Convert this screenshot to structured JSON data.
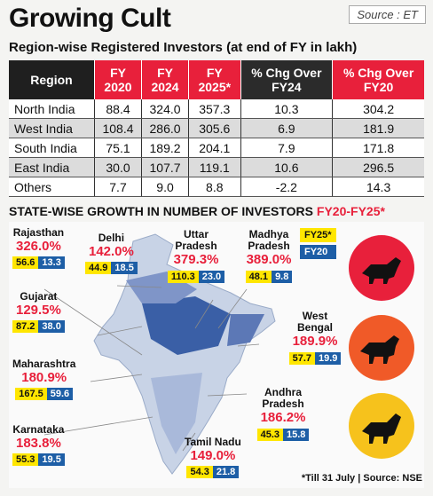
{
  "title": "Growing Cult",
  "source_tag": "Source : ET",
  "subtitle": "Region-wise Registered Investors (at end of FY  in lakh)",
  "table": {
    "headers": {
      "region": "Region",
      "fy2020": "FY 2020",
      "fy2024": "FY 2024",
      "fy2025": "FY 2025*",
      "chg24": "% Chg Over FY24",
      "chg20": "% Chg Over FY20"
    },
    "rows": [
      {
        "region": "North India",
        "fy2020": "88.4",
        "fy2024": "324.0",
        "fy2025": "357.3",
        "chg24": "10.3",
        "chg20": "304.2"
      },
      {
        "region": "West India",
        "fy2020": "108.4",
        "fy2024": "286.0",
        "fy2025": "305.6",
        "chg24": "6.9",
        "chg20": "181.9"
      },
      {
        "region": "South India",
        "fy2020": "75.1",
        "fy2024": "189.2",
        "fy2025": "204.1",
        "chg24": "7.9",
        "chg20": "171.8"
      },
      {
        "region": "East India",
        "fy2020": "30.0",
        "fy2024": "107.7",
        "fy2025": "119.1",
        "chg24": "10.6",
        "chg20": "296.5"
      },
      {
        "region": "Others",
        "fy2020": "7.7",
        "fy2024": "9.0",
        "fy2025": "8.8",
        "chg24": "-2.2",
        "chg20": "14.3"
      }
    ]
  },
  "section_title": {
    "main": "STATE-WISE GROWTH IN NUMBER OF INVESTORS ",
    "highlight": "FY20-FY25*"
  },
  "legend": {
    "fy25": "FY25*",
    "fy20": "FY20"
  },
  "states": {
    "rajasthan": {
      "name": "Rajasthan",
      "pct": "326.0%",
      "fy25": "56.6",
      "fy20": "13.3"
    },
    "delhi": {
      "name": "Delhi",
      "pct": "142.0%",
      "fy25": "44.9",
      "fy20": "18.5"
    },
    "uttar": {
      "name": "Uttar Pradesh",
      "pct": "379.3%",
      "fy25": "110.3",
      "fy20": "23.0"
    },
    "madhya": {
      "name": "Madhya Pradesh",
      "pct": "389.0%",
      "fy25": "48.1",
      "fy20": "9.8"
    },
    "gujarat": {
      "name": "Gujarat",
      "pct": "129.5%",
      "fy25": "87.2",
      "fy20": "38.0"
    },
    "westbengal": {
      "name": "West Bengal",
      "pct": "189.9%",
      "fy25": "57.7",
      "fy20": "19.9"
    },
    "maharashtra": {
      "name": "Maharashtra",
      "pct": "180.9%",
      "fy25": "167.5",
      "fy20": "59.6"
    },
    "andhra": {
      "name": "Andhra Pradesh",
      "pct": "186.2%",
      "fy25": "45.3",
      "fy20": "15.8"
    },
    "karnataka": {
      "name": "Karnataka",
      "pct": "183.8%",
      "fy25": "55.3",
      "fy20": "19.5"
    },
    "tamilnadu": {
      "name": "Tamil Nadu",
      "pct": "149.0%",
      "fy25": "54.3",
      "fy20": "21.8"
    }
  },
  "footnote": "*Till 31 July | Source: NSE",
  "colors": {
    "accent_red": "#e8203b",
    "fy25_yellow": "#ffe600",
    "fy20_blue": "#1d5ea6"
  }
}
